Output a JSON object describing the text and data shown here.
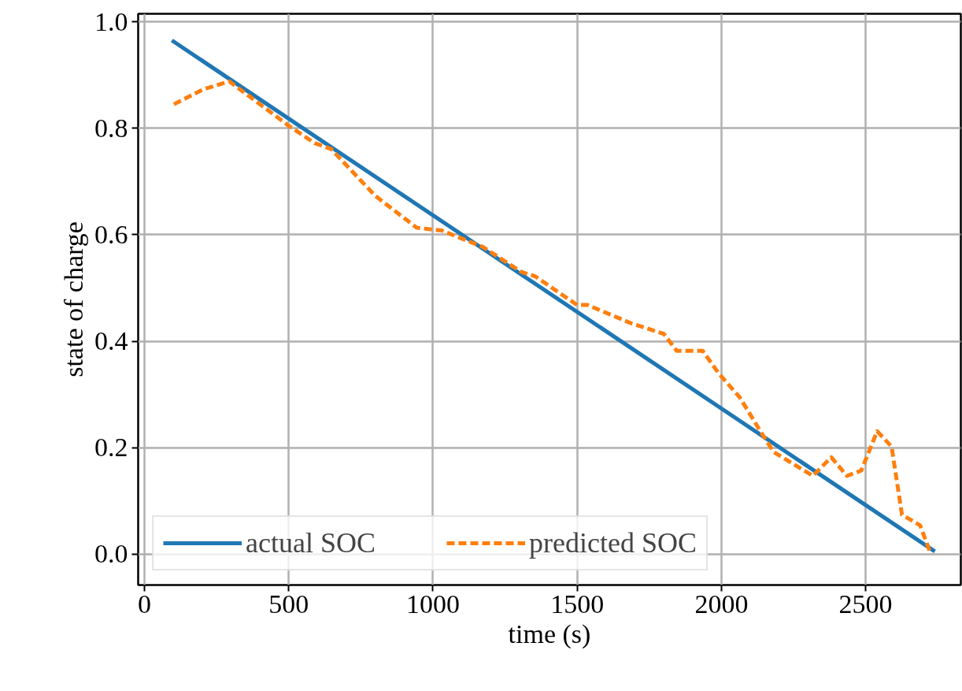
{
  "chart_data": {
    "type": "line",
    "xlabel": "time (s)",
    "ylabel": "state of charge",
    "xlim": [
      -22,
      2830
    ],
    "ylim": [
      -0.058,
      1.015
    ],
    "xticks": [
      0,
      500,
      1000,
      1500,
      2000,
      2500
    ],
    "yticks": [
      {
        "value": 0,
        "label": "0.0"
      },
      0.2,
      0.4,
      0.6,
      0.8,
      {
        "value": 1,
        "label": "1.0"
      }
    ],
    "grid": true,
    "legend": "bottom",
    "series": [
      {
        "name": "actual SOC",
        "color": "#1f77b4",
        "line_style": "solid",
        "x": [
          95,
          2740
        ],
        "values": [
          0.965,
          0.005
        ]
      },
      {
        "name": "predicted SOC",
        "color": "#ff7f0e",
        "line_style": "dashed",
        "x": [
          102,
          203,
          294,
          408,
          499,
          590,
          647,
          800,
          944,
          1030,
          1173,
          1307,
          1354,
          1500,
          1536,
          1690,
          1800,
          1845,
          1935,
          1990,
          2063,
          2135,
          2181,
          2317,
          2381,
          2435,
          2485,
          2540,
          2590,
          2626,
          2689,
          2726
        ],
        "values": [
          0.845,
          0.873,
          0.888,
          0.842,
          0.805,
          0.772,
          0.761,
          0.673,
          0.613,
          0.608,
          0.577,
          0.53,
          0.522,
          0.468,
          0.468,
          0.433,
          0.414,
          0.382,
          0.382,
          0.34,
          0.295,
          0.231,
          0.192,
          0.147,
          0.182,
          0.147,
          0.157,
          0.231,
          0.202,
          0.074,
          0.054,
          0.0
        ]
      }
    ]
  }
}
